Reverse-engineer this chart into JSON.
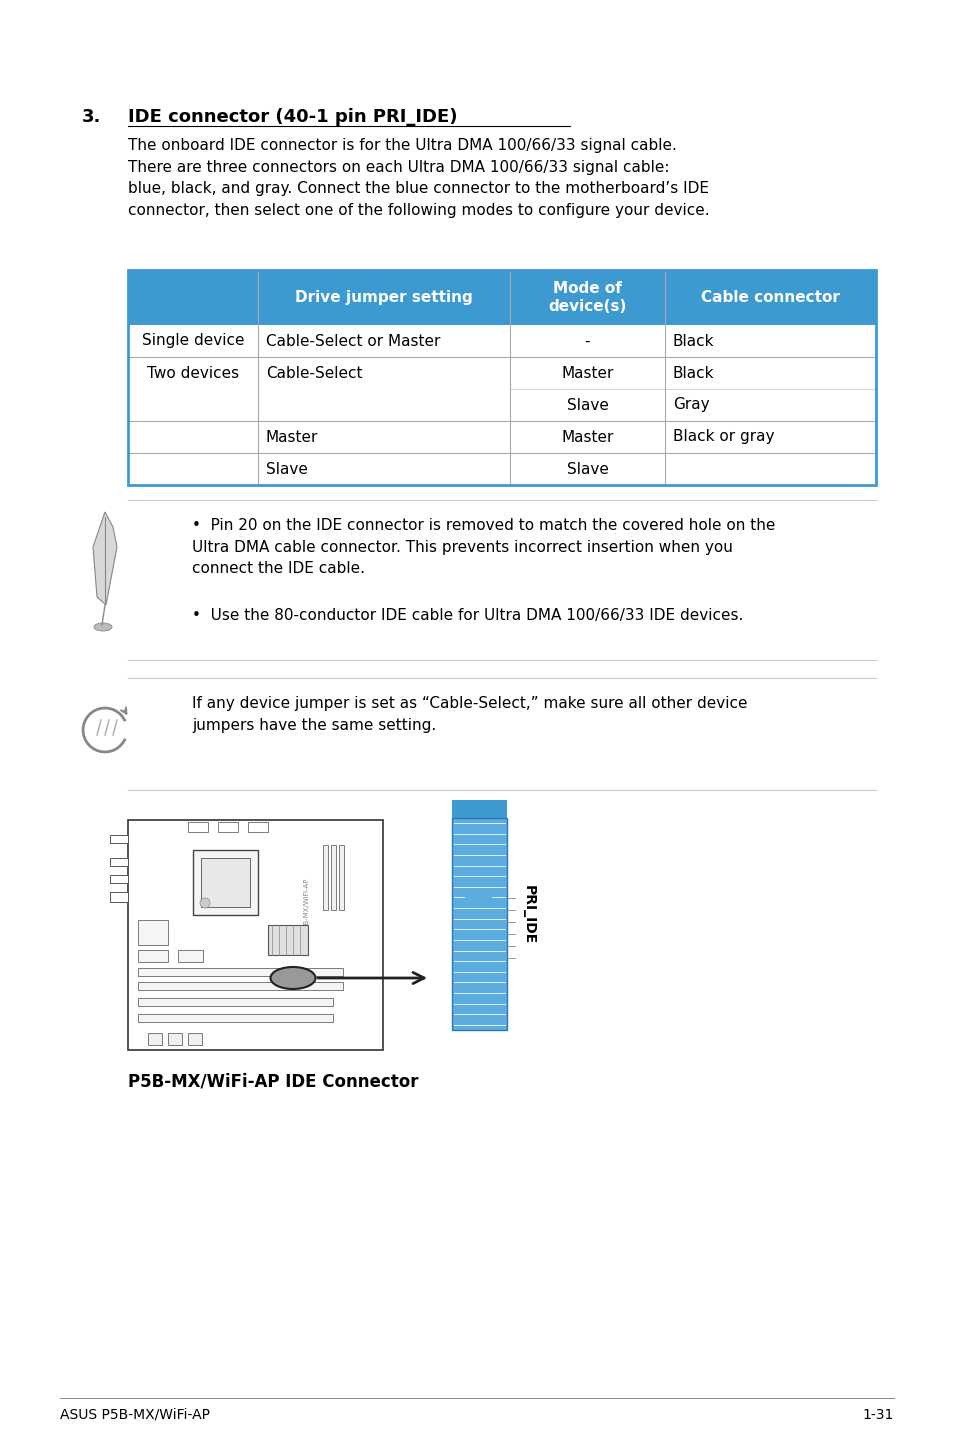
{
  "page_bg": "#ffffff",
  "page_width": 9.54,
  "page_height": 14.38,
  "section_number": "3.",
  "section_title": "IDE connector (40-1 pin PRI_IDE)",
  "body_text": "The onboard IDE connector is for the Ultra DMA 100/66/33 signal cable.\nThere are three connectors on each Ultra DMA 100/66/33 signal cable:\nblue, black, and gray. Connect the blue connector to the motherboard’s IDE\nconnector, then select one of the following modes to configure your device.",
  "table_header_bg": "#3d9ad1",
  "table_border_color": "#3d9ad1",
  "table_inner_color": "#aaaaaa",
  "col_headers": [
    "",
    "Drive jumper setting",
    "Mode of\ndevice(s)",
    "Cable connector"
  ],
  "table_rows": [
    [
      "Single device",
      "Cable-Select or Master",
      "-",
      "Black"
    ],
    [
      "Two devices",
      "Cable-Select",
      "Master",
      "Black"
    ],
    [
      "",
      "",
      "Slave",
      "Gray"
    ],
    [
      "",
      "Master",
      "Master",
      "Black or gray"
    ],
    [
      "",
      "Slave",
      "Slave",
      ""
    ]
  ],
  "note1_bullet1": "Pin 20 on the IDE connector is removed to match the covered hole on the\nUltra DMA cable connector. This prevents incorrect insertion when you\nconnect the IDE cable.",
  "note1_bullet2": "Use the 80-conductor IDE cable for Ultra DMA 100/66/33 IDE devices.",
  "note2_text": "If any device jumper is set as “Cable-Select,” make sure all other device\njumpers have the same setting.",
  "diagram_caption": "P5B-MX/WiFi-AP IDE Connector",
  "footer_left": "ASUS P5B-MX/WiFi-AP",
  "footer_right": "1-31"
}
